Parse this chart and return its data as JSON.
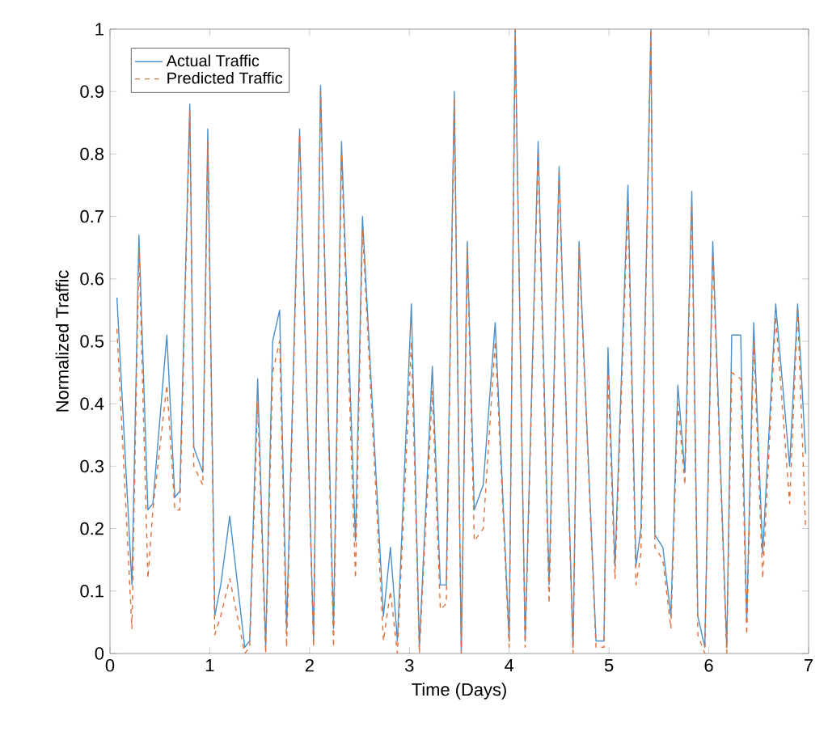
{
  "chart_data": {
    "type": "line",
    "xlabel": "Time (Days)",
    "ylabel": "Normalized Traffic",
    "xlim": [
      0,
      7
    ],
    "ylim": [
      0,
      1
    ],
    "xticks": [
      0,
      1,
      2,
      3,
      4,
      5,
      6,
      7
    ],
    "yticks": [
      0,
      0.1,
      0.2,
      0.3,
      0.4,
      0.5,
      0.6,
      0.7,
      0.8,
      0.9,
      1
    ],
    "grid": false,
    "legend": "top left",
    "x": [
      0.07,
      0.22,
      0.29,
      0.38,
      0.43,
      0.57,
      0.65,
      0.7,
      0.8,
      0.84,
      0.93,
      0.98,
      1.05,
      1.11,
      1.2,
      1.35,
      1.4,
      1.48,
      1.56,
      1.63,
      1.7,
      1.77,
      1.9,
      2.04,
      2.11,
      2.24,
      2.32,
      2.46,
      2.53,
      2.74,
      2.81,
      2.88,
      3.02,
      3.1,
      3.23,
      3.31,
      3.37,
      3.45,
      3.52,
      3.58,
      3.65,
      3.74,
      3.86,
      4.0,
      4.06,
      4.16,
      4.29,
      4.4,
      4.5,
      4.64,
      4.7,
      4.87,
      4.95,
      4.99,
      5.06,
      5.19,
      5.27,
      5.32,
      5.42,
      5.46,
      5.54,
      5.62,
      5.69,
      5.76,
      5.83,
      5.89,
      5.96,
      6.04,
      6.18,
      6.23,
      6.32,
      6.38,
      6.45,
      6.54,
      6.67,
      6.81,
      6.89,
      6.97
    ],
    "series": [
      {
        "name": "Actual Traffic",
        "color": "#4a8fc9",
        "line_style": "solid",
        "values": [
          0.57,
          0.11,
          0.67,
          0.23,
          0.24,
          0.51,
          0.25,
          0.26,
          0.88,
          0.33,
          0.29,
          0.84,
          0.06,
          0.11,
          0.22,
          0.01,
          0.02,
          0.44,
          0.01,
          0.5,
          0.55,
          0.04,
          0.84,
          0.02,
          0.91,
          0.04,
          0.82,
          0.18,
          0.7,
          0.06,
          0.17,
          0.02,
          0.56,
          0.01,
          0.46,
          0.11,
          0.11,
          0.9,
          0.0,
          0.66,
          0.23,
          0.27,
          0.53,
          0.02,
          1.0,
          0.02,
          0.82,
          0.11,
          0.78,
          0.01,
          0.66,
          0.02,
          0.02,
          0.49,
          0.14,
          0.75,
          0.14,
          0.2,
          1.0,
          0.19,
          0.17,
          0.06,
          0.43,
          0.29,
          0.74,
          0.06,
          0.01,
          0.66,
          0.01,
          0.51,
          0.51,
          0.05,
          0.53,
          0.16,
          0.56,
          0.3,
          0.56,
          0.32
        ]
      },
      {
        "name": "Predicted Traffic",
        "color": "#e0703a",
        "line_style": "dashed",
        "values": [
          0.52,
          0.04,
          0.65,
          0.12,
          0.23,
          0.43,
          0.23,
          0.23,
          0.87,
          0.3,
          0.27,
          0.82,
          0.03,
          0.06,
          0.12,
          0.0,
          0.01,
          0.4,
          0.0,
          0.45,
          0.5,
          0.01,
          0.83,
          0.01,
          0.9,
          0.01,
          0.8,
          0.12,
          0.68,
          0.02,
          0.1,
          0.0,
          0.5,
          0.0,
          0.42,
          0.07,
          0.08,
          0.89,
          0.0,
          0.65,
          0.18,
          0.2,
          0.5,
          0.01,
          1.0,
          0.01,
          0.8,
          0.08,
          0.77,
          0.0,
          0.65,
          0.01,
          0.01,
          0.45,
          0.12,
          0.72,
          0.11,
          0.16,
          1.0,
          0.17,
          0.15,
          0.04,
          0.4,
          0.27,
          0.72,
          0.03,
          0.0,
          0.64,
          0.0,
          0.45,
          0.44,
          0.03,
          0.5,
          0.12,
          0.54,
          0.24,
          0.55,
          0.2
        ]
      }
    ]
  }
}
